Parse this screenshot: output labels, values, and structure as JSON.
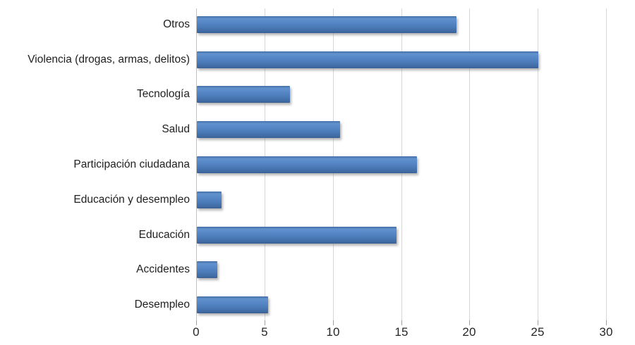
{
  "chart_data": {
    "type": "bar",
    "orientation": "horizontal",
    "title": "",
    "xlabel": "",
    "ylabel": "",
    "categories": [
      "Otros",
      "Violencia (drogas, armas, delitos)",
      "Tecnología",
      "Salud",
      "Participación ciudadana",
      "Educación y desempleo",
      "Educación",
      "Accidentes",
      "Desempleo"
    ],
    "values": [
      19,
      25,
      6.8,
      10.5,
      16.1,
      1.8,
      14.6,
      1.5,
      5.2
    ],
    "xlim": [
      0,
      30
    ],
    "x_ticks": [
      0,
      5,
      10,
      15,
      20,
      25,
      30
    ],
    "grid": "vertical-only",
    "legend": "none",
    "colors": {
      "bar": "#4f81bd",
      "gridline": "#d6d6d6",
      "axis_line": "#c3c3c3",
      "tick": "#9e9e9e",
      "label_text": "#1f1f1f",
      "tick_text": "#262626",
      "background": "#ffffff"
    }
  }
}
